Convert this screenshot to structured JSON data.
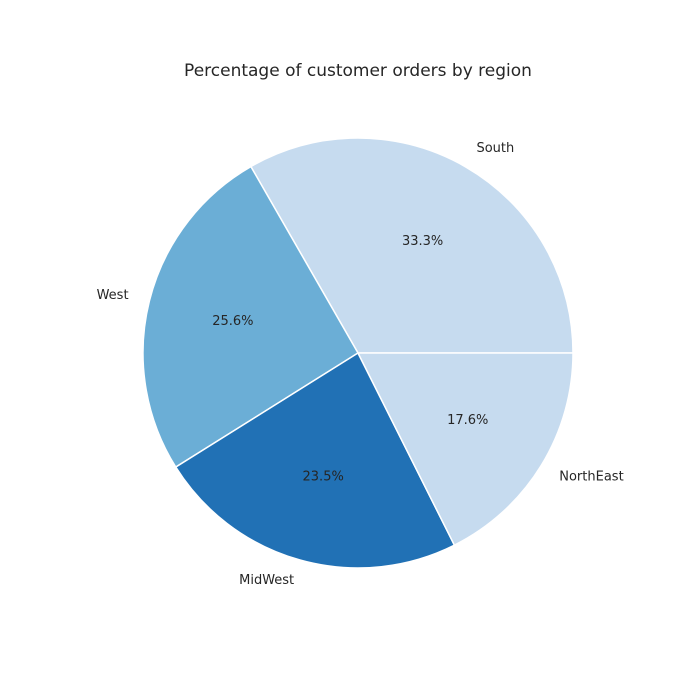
{
  "chart_data": {
    "type": "pie",
    "title": "Percentage of customer orders by region",
    "categories": [
      "South",
      "West",
      "MidWest",
      "NorthEast"
    ],
    "values": [
      33.3,
      25.6,
      23.5,
      17.6
    ],
    "value_labels": [
      "33.3%",
      "25.6%",
      "23.5%",
      "17.6%"
    ],
    "colors": [
      "#c6dbef",
      "#6baed6",
      "#2171b5",
      "#c6dbef"
    ],
    "start_angle_deg": 0,
    "direction": "counterclockwise"
  }
}
